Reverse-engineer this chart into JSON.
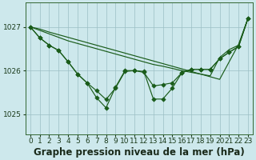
{
  "background_color": "#cde8ec",
  "plot_bg_color": "#cde8ec",
  "grid_color": "#9bbfc4",
  "line_color": "#1a5c1a",
  "marker_color": "#1a5c1a",
  "title": "Graphe pression niveau de la mer (hPa)",
  "yticks": [
    1025,
    1026,
    1027
  ],
  "ylim": [
    1024.55,
    1027.55
  ],
  "xlim": [
    -0.5,
    23.5
  ],
  "series_no_marker": [
    [
      1027.0,
      1026.95,
      1026.88,
      1026.82,
      1026.76,
      1026.7,
      1026.64,
      1026.58,
      1026.52,
      1026.46,
      1026.4,
      1026.34,
      1026.28,
      1026.22,
      1026.16,
      1026.1,
      1026.04,
      1025.98,
      1025.92,
      1025.86,
      1025.8,
      1026.2,
      1026.6,
      1027.2
    ],
    [
      1027.0,
      1026.92,
      1026.84,
      1026.76,
      1026.68,
      1026.62,
      1026.56,
      1026.5,
      1026.44,
      1026.38,
      1026.32,
      1026.26,
      1026.2,
      1026.14,
      1026.1,
      1026.05,
      1026.0,
      1025.96,
      1025.92,
      1025.88,
      1026.3,
      1026.48,
      1026.58,
      1027.2
    ]
  ],
  "series_with_marker": [
    [
      1027.0,
      1026.75,
      1026.58,
      1026.46,
      1026.2,
      1025.92,
      1025.72,
      1025.54,
      1025.34,
      1025.6,
      1025.98,
      1026.0,
      1025.96,
      1025.65,
      1025.68,
      1025.72,
      1025.95,
      1026.03,
      1026.03,
      1026.03,
      1026.27,
      1026.42,
      1026.55,
      1027.2
    ],
    [
      1027.0,
      1026.75,
      1026.58,
      1026.46,
      1026.2,
      1025.92,
      1025.72,
      1025.38,
      1025.15,
      1025.62,
      1026.0,
      1026.0,
      1025.98,
      1025.35,
      1025.35,
      1025.6,
      1025.95,
      1026.03,
      1026.03,
      1026.03,
      1026.27,
      1026.42,
      1026.55,
      1027.2
    ]
  ],
  "title_fontsize": 8.5,
  "tick_fontsize": 6.5,
  "linewidth": 0.85,
  "markersize": 2.8
}
